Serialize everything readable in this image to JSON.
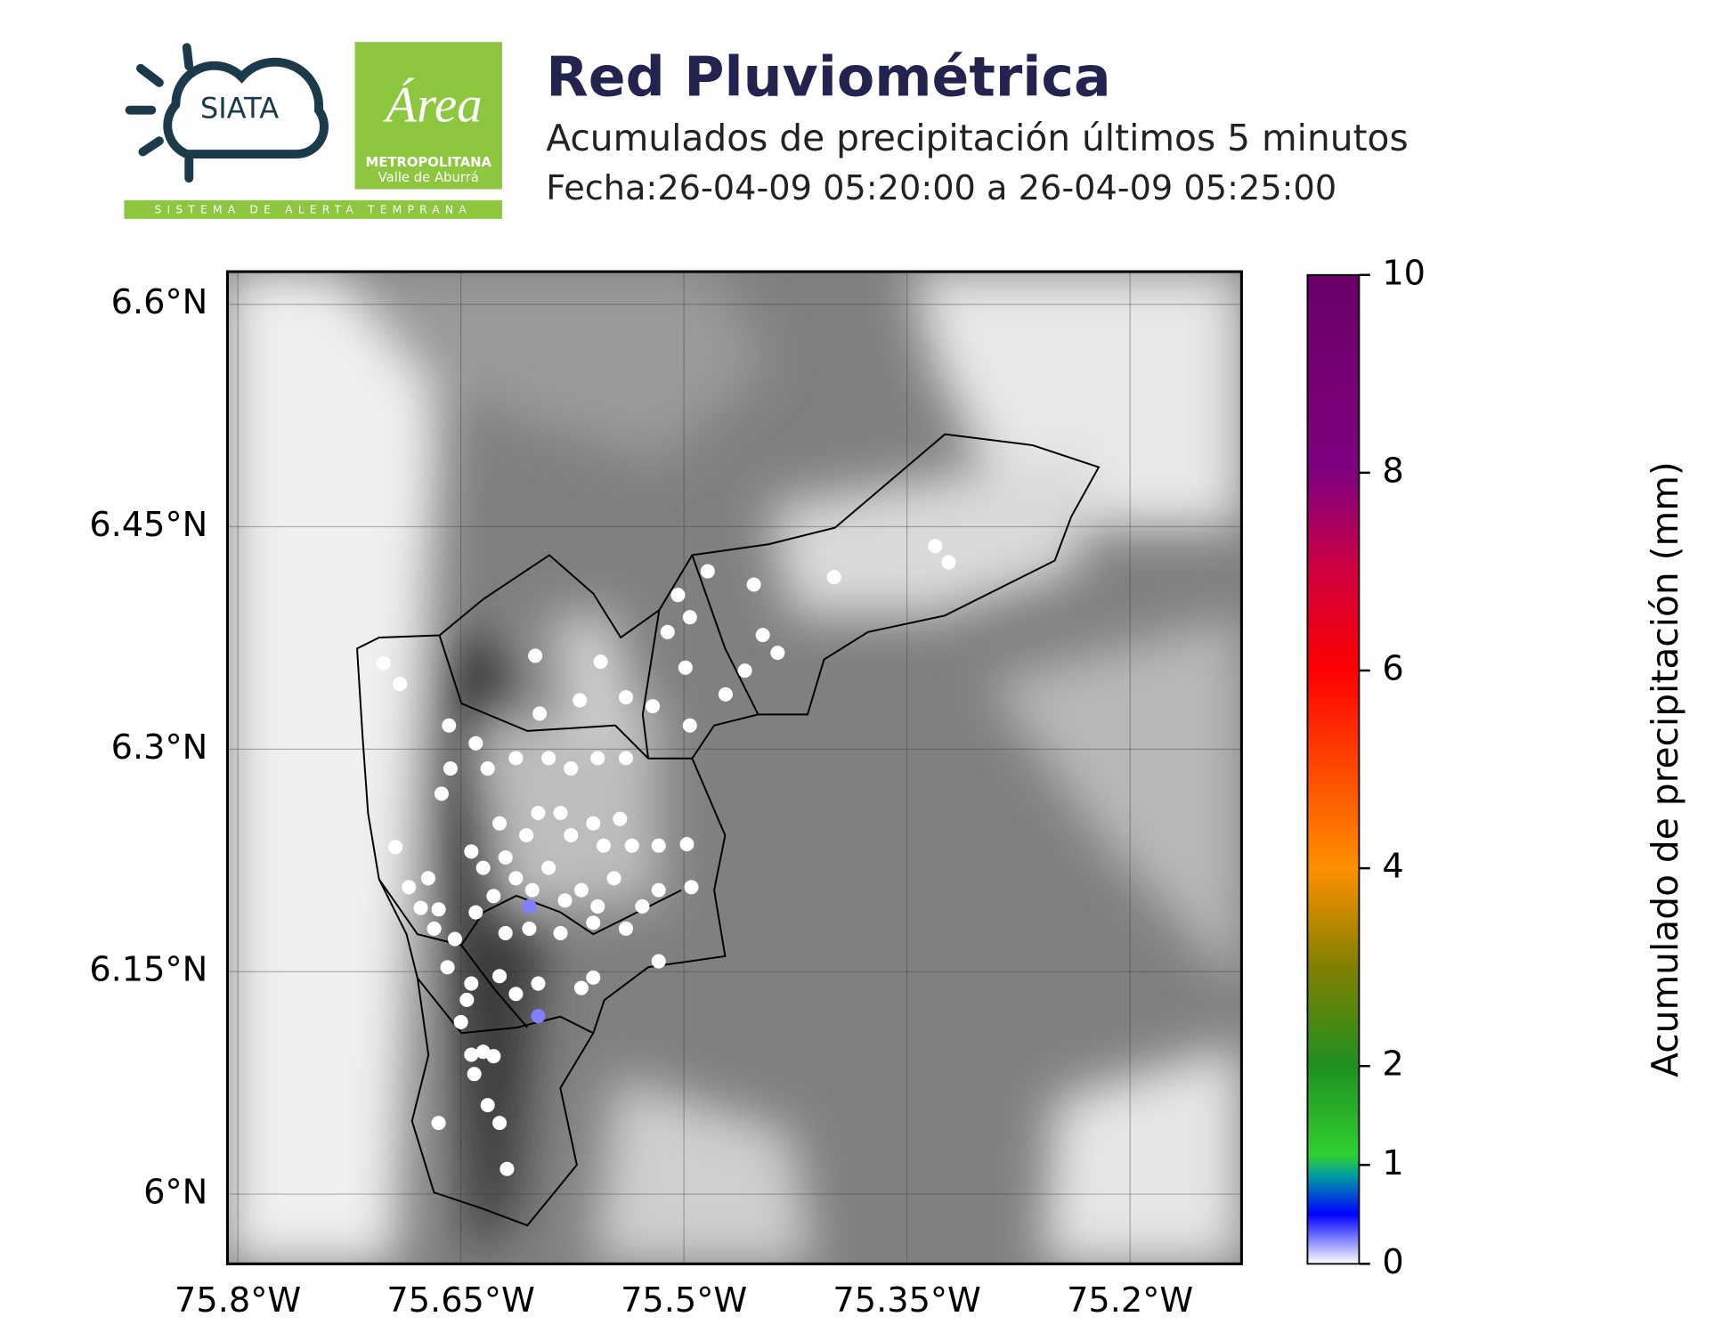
{
  "header": {
    "title": "Red Pluviométrica",
    "subtitle": "Acumulados de precipitación últimos 5 minutos",
    "date": "Fecha:26-04-09 05:20:00 a 26-04-09 05:25:00",
    "logo_siata": "SIATA",
    "logo_area": "Área",
    "logo_metro": "METROPOLITANA",
    "logo_valle": "Valle de Aburrá",
    "logo_strip": "SISTEMA DE ALERTA TEMPRANA"
  },
  "chart_data": {
    "type": "map",
    "xlim": [
      -75.807,
      -75.125
    ],
    "ylim": [
      5.953,
      6.622
    ],
    "xticks": [
      {
        "value": -75.8,
        "label": "75.8°W"
      },
      {
        "value": -75.65,
        "label": "75.65°W"
      },
      {
        "value": -75.5,
        "label": "75.5°W"
      },
      {
        "value": -75.35,
        "label": "75.35°W"
      },
      {
        "value": -75.2,
        "label": "75.2°W"
      }
    ],
    "yticks": [
      {
        "value": 6.0,
        "label": "6°N"
      },
      {
        "value": 6.15,
        "label": "6.15°N"
      },
      {
        "value": 6.3,
        "label": "6.3°N"
      },
      {
        "value": 6.45,
        "label": "6.45°N"
      },
      {
        "value": 6.6,
        "label": "6.6°N"
      }
    ],
    "grid": true,
    "colorbar": {
      "label": "Acumulado de precipitación (mm)",
      "clim": [
        0,
        10
      ],
      "ticks": [
        0,
        1,
        2,
        4,
        6,
        8,
        10
      ]
    },
    "stations": {
      "lon": [
        -75.702,
        -75.691,
        -75.6,
        -75.556,
        -75.658,
        -75.64,
        -75.597,
        -75.57,
        -75.539,
        -75.504,
        -75.496,
        -75.511,
        -75.499,
        -75.484,
        -75.453,
        -75.399,
        -75.331,
        -75.322,
        -75.447,
        -75.437,
        -75.459,
        -75.472,
        -75.496,
        -75.521,
        -75.591,
        -75.576,
        -75.558,
        -75.539,
        -75.613,
        -75.632,
        -75.657,
        -75.663,
        -75.598,
        -75.583,
        -75.561,
        -75.543,
        -75.535,
        -75.554,
        -75.576,
        -75.606,
        -75.624,
        -75.643,
        -75.635,
        -75.62,
        -75.613,
        -75.591,
        -75.569,
        -75.547,
        -75.517,
        -75.498,
        -75.495,
        -75.517,
        -75.528,
        -75.558,
        -75.58,
        -75.602,
        -75.628,
        -75.64,
        -75.665,
        -75.677,
        -75.685,
        -75.672,
        -75.694,
        -75.604,
        -75.604,
        -75.62,
        -75.583,
        -75.561,
        -75.539,
        -75.517,
        -75.561,
        -75.569,
        -75.598,
        -75.613,
        -75.624,
        -75.643,
        -75.646,
        -75.659,
        -75.65,
        -75.643,
        -75.635,
        -75.628,
        -75.641,
        -75.632,
        -75.624,
        -75.665,
        -75.619,
        -75.598,
        -75.654,
        -75.668
      ],
      "lat": [
        6.358,
        6.344,
        6.363,
        6.359,
        6.316,
        6.304,
        6.324,
        6.333,
        6.335,
        6.404,
        6.389,
        6.379,
        6.355,
        6.42,
        6.411,
        6.416,
        6.437,
        6.426,
        6.377,
        6.365,
        6.353,
        6.337,
        6.316,
        6.329,
        6.294,
        6.287,
        6.294,
        6.294,
        6.294,
        6.287,
        6.287,
        6.27,
        6.257,
        6.257,
        6.25,
        6.253,
        6.235,
        6.235,
        6.242,
        6.242,
        6.25,
        6.231,
        6.22,
        6.227,
        6.213,
        6.22,
        6.205,
        6.213,
        6.235,
        6.236,
        6.207,
        6.205,
        6.194,
        6.194,
        6.198,
        6.205,
        6.201,
        6.19,
        6.192,
        6.193,
        6.207,
        6.213,
        6.234,
        6.194,
        6.179,
        6.176,
        6.176,
        6.183,
        6.179,
        6.157,
        6.146,
        6.139,
        6.142,
        6.135,
        6.147,
        6.142,
        6.131,
        6.153,
        6.116,
        6.094,
        6.096,
        6.093,
        6.081,
        6.06,
        6.048,
        6.048,
        6.017,
        6.12,
        6.172,
        6.179
      ],
      "values": [
        0,
        0,
        0,
        0,
        0,
        0,
        0,
        0,
        0,
        0,
        0,
        0,
        0,
        0,
        0,
        0,
        0,
        0,
        0,
        0,
        0,
        0,
        0,
        0,
        0,
        0,
        0,
        0,
        0,
        0,
        0,
        0,
        0,
        0,
        0,
        0,
        0,
        0,
        0,
        0,
        0,
        0,
        0,
        0,
        0,
        0,
        0,
        0,
        0,
        0,
        0,
        0,
        0,
        0,
        0,
        0,
        0,
        0,
        0,
        0,
        0,
        0,
        0,
        0.4,
        0,
        0,
        0,
        0,
        0,
        0,
        0,
        0,
        0,
        0,
        0,
        0,
        0,
        0,
        0,
        0,
        0,
        0,
        0,
        0,
        0,
        0,
        0,
        0.4,
        0,
        0
      ]
    }
  }
}
